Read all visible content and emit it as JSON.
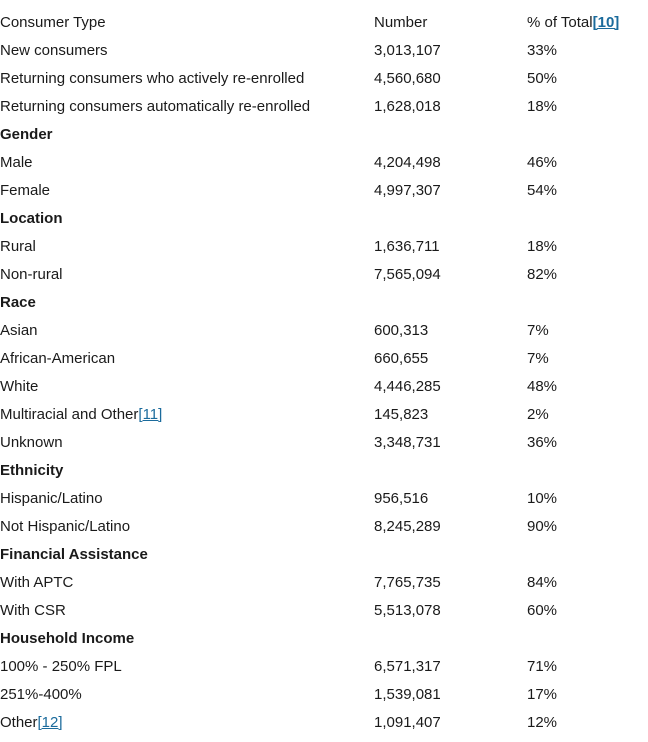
{
  "link_color": "#1b6b9c",
  "text_color": "#1a1a1a",
  "table": {
    "header": {
      "col_label": "Consumer Type",
      "col_number": "Number",
      "col_percent": "% of Total",
      "footnote": "[10]"
    },
    "sections": [
      {
        "title": null,
        "rows": [
          {
            "label": "New consumers",
            "number": "3,013,107",
            "percent": "33%"
          },
          {
            "label": "Returning consumers who actively re-enrolled",
            "number": "4,560,680",
            "percent": "50%"
          },
          {
            "label": "Returning consumers automatically re-enrolled",
            "number": "1,628,018",
            "percent": "18%"
          }
        ]
      },
      {
        "title": "Gender",
        "rows": [
          {
            "label": "Male",
            "number": "4,204,498",
            "percent": "46%"
          },
          {
            "label": "Female",
            "number": "4,997,307",
            "percent": "54%"
          }
        ]
      },
      {
        "title": "Location",
        "rows": [
          {
            "label": "Rural",
            "number": "1,636,711",
            "percent": "18%"
          },
          {
            "label": "Non-rural",
            "number": "7,565,094",
            "percent": "82%"
          }
        ]
      },
      {
        "title": "Race",
        "rows": [
          {
            "label": "Asian",
            "number": "600,313",
            "percent": "7%"
          },
          {
            "label": "African-American",
            "number": "660,655",
            "percent": "7%"
          },
          {
            "label": "White",
            "number": "4,446,285",
            "percent": "48%"
          },
          {
            "label": "Multiracial and Other",
            "footnote": "[11]",
            "number": "145,823",
            "percent": "2%"
          },
          {
            "label": "Unknown",
            "number": "3,348,731",
            "percent": "36%"
          }
        ]
      },
      {
        "title": "Ethnicity",
        "rows": [
          {
            "label": "Hispanic/Latino",
            "number": "956,516",
            "percent": "10%"
          },
          {
            "label": "Not Hispanic/Latino",
            "number": "8,245,289",
            "percent": "90%"
          }
        ]
      },
      {
        "title": "Financial Assistance",
        "rows": [
          {
            "label": "With APTC",
            "number": "7,765,735",
            "percent": "84%"
          },
          {
            "label": "With CSR",
            "number": "5,513,078",
            "percent": "60%"
          }
        ]
      },
      {
        "title": "Household Income",
        "rows": [
          {
            "label": "100% - 250% FPL",
            "number": "6,571,317",
            "percent": "71%"
          },
          {
            "label": "251%-400%",
            "number": "1,539,081",
            "percent": "17%"
          },
          {
            "label": "Other",
            "footnote": "[12]",
            "number": "1,091,407",
            "percent": "12%"
          }
        ]
      }
    ]
  }
}
